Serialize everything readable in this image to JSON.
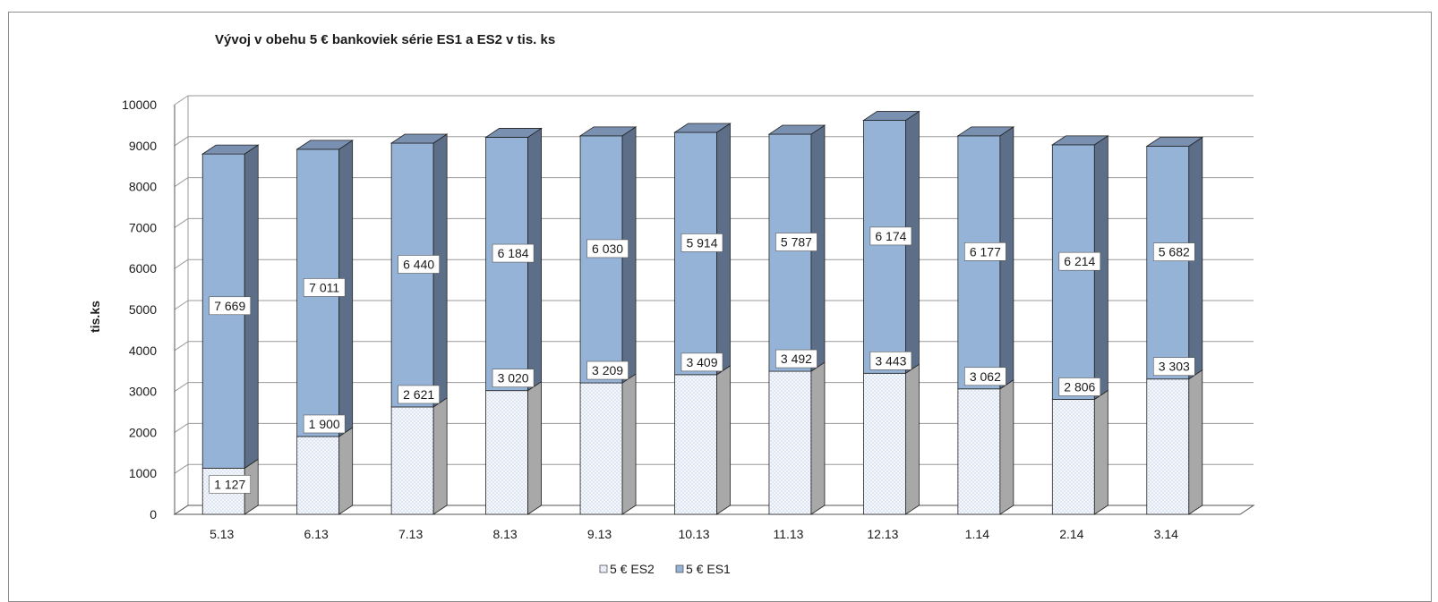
{
  "chart_data": {
    "type": "bar",
    "stacked": true,
    "title": "Vývoj v obehu 5 € bankoviek série ES1 a ES2 v tis. ks",
    "xlabel": "",
    "ylabel": "tis.ks",
    "ylim": [
      0,
      10000
    ],
    "yticks": [
      0,
      1000,
      2000,
      3000,
      4000,
      5000,
      6000,
      7000,
      8000,
      9000,
      10000
    ],
    "grid": true,
    "legend_position": "bottom",
    "categories": [
      "5.13",
      "6.13",
      "7.13",
      "8.13",
      "9.13",
      "10.13",
      "11.13",
      "12.13",
      "1.14",
      "2.14",
      "3.14"
    ],
    "series": [
      {
        "name": "5 € ES2",
        "color": "#eef3fb",
        "values": [
          1127,
          1900,
          2621,
          3020,
          3209,
          3409,
          3492,
          3443,
          3062,
          2806,
          3303
        ],
        "labels": [
          "1 127",
          "1 900",
          "2 621",
          "3 020",
          "3 209",
          "3 409",
          "3 492",
          "3 443",
          "3 062",
          "2 806",
          "3 303"
        ]
      },
      {
        "name": "5 € ES1",
        "color": "#95b3d7",
        "values": [
          7669,
          7011,
          6440,
          6184,
          6030,
          5914,
          5787,
          6174,
          6177,
          6214,
          5682
        ],
        "labels": [
          "7 669",
          "7 011",
          "6 440",
          "6 184",
          "6 030",
          "5 914",
          "5 787",
          "6 174",
          "6 177",
          "6 214",
          "5 682"
        ]
      }
    ]
  }
}
